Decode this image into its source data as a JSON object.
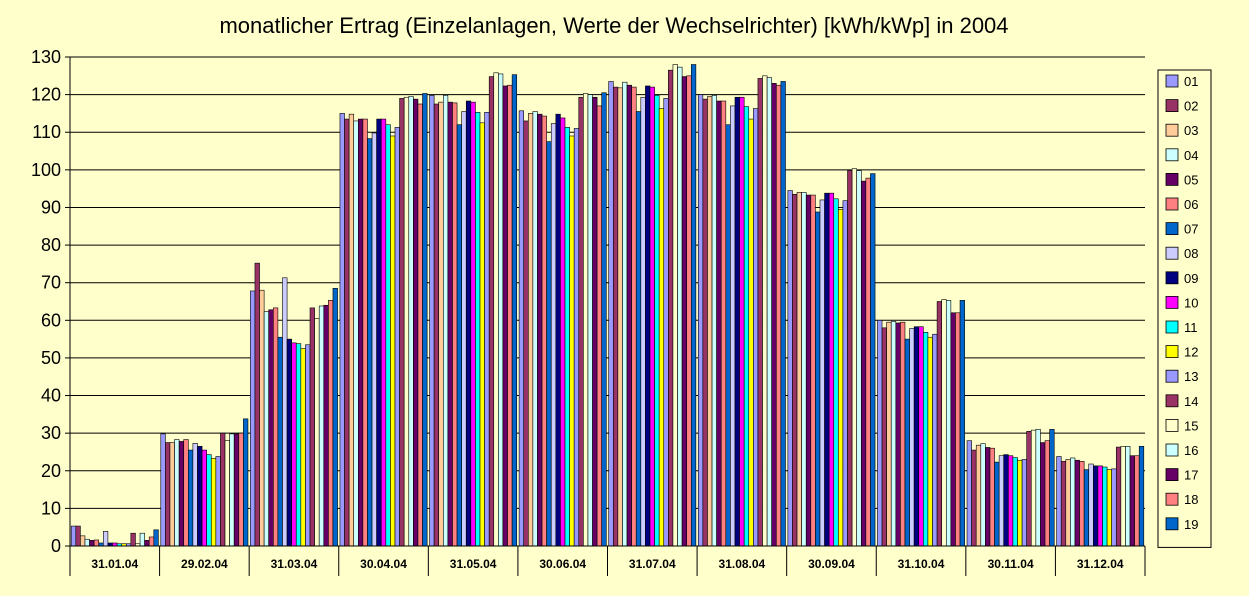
{
  "chart_data": {
    "type": "bar",
    "title": "monatlicher Ertrag (Einzelanlagen, Werte der Wechselrichter) [kWh/kWp] in 2004",
    "xlabel": "",
    "ylabel": "",
    "ylim": [
      0,
      130
    ],
    "yticks": [
      0,
      10,
      20,
      30,
      40,
      50,
      60,
      70,
      80,
      90,
      100,
      110,
      120,
      130
    ],
    "grid": true,
    "legend_position": "right",
    "categories": [
      "31.01.04",
      "29.02.04",
      "31.03.04",
      "30.04.04",
      "31.05.04",
      "30.06.04",
      "31.07.04",
      "31.08.04",
      "30.09.04",
      "31.10.04",
      "30.11.04",
      "31.12.04"
    ],
    "series": [
      {
        "name": "01",
        "color": "#9999ff",
        "values": [
          5.3,
          29.8,
          67.8,
          115.0,
          119.8,
          115.7,
          123.5,
          120.0,
          94.5,
          60.0,
          28.0,
          23.8
        ]
      },
      {
        "name": "02",
        "color": "#993366",
        "values": [
          5.3,
          27.5,
          75.2,
          113.5,
          117.5,
          113.0,
          122.0,
          118.8,
          93.5,
          58.0,
          25.5,
          22.5
        ]
      },
      {
        "name": "03",
        "color": "#ffcc99",
        "values": [
          2.7,
          27.5,
          68.0,
          114.8,
          118.0,
          115.0,
          121.8,
          119.5,
          94.0,
          59.5,
          26.8,
          23.0
        ]
      },
      {
        "name": "04",
        "color": "#ccffff",
        "values": [
          1.8,
          28.3,
          62.3,
          113.0,
          119.8,
          115.5,
          123.3,
          119.8,
          94.0,
          59.7,
          27.2,
          23.4
        ]
      },
      {
        "name": "05",
        "color": "#660066",
        "values": [
          1.5,
          27.8,
          62.8,
          113.5,
          118.0,
          114.8,
          122.5,
          118.3,
          93.3,
          59.3,
          26.2,
          22.8
        ]
      },
      {
        "name": "06",
        "color": "#ff8080",
        "values": [
          1.6,
          28.3,
          63.3,
          113.5,
          117.8,
          114.3,
          122.0,
          118.3,
          93.3,
          59.5,
          26.0,
          22.5
        ]
      },
      {
        "name": "07",
        "color": "#0066cc",
        "values": [
          0.8,
          25.5,
          55.5,
          108.3,
          112.0,
          107.5,
          115.5,
          112.0,
          88.8,
          55.0,
          22.3,
          20.3
        ]
      },
      {
        "name": "08",
        "color": "#ccccff",
        "values": [
          3.9,
          27.3,
          71.3,
          109.8,
          115.5,
          112.3,
          119.3,
          117.0,
          92.0,
          57.8,
          24.0,
          21.8
        ]
      },
      {
        "name": "09",
        "color": "#000080",
        "values": [
          0.8,
          26.5,
          55.0,
          113.5,
          118.3,
          114.8,
          122.3,
          119.3,
          93.8,
          58.3,
          24.3,
          21.3
        ]
      },
      {
        "name": "10",
        "color": "#ff00ff",
        "values": [
          0.8,
          25.5,
          54.0,
          113.5,
          118.0,
          113.8,
          122.0,
          119.3,
          93.8,
          58.3,
          24.0,
          21.3
        ]
      },
      {
        "name": "11",
        "color": "#00ffff",
        "values": [
          0.6,
          24.3,
          53.8,
          112.0,
          115.3,
          111.3,
          119.8,
          116.8,
          92.3,
          56.8,
          23.5,
          21.0
        ]
      },
      {
        "name": "12",
        "color": "#ffff00",
        "values": [
          0.6,
          23.3,
          52.5,
          109.0,
          112.5,
          109.0,
          116.3,
          113.5,
          89.5,
          55.5,
          22.8,
          20.3
        ]
      },
      {
        "name": "13",
        "color": "#9999ff",
        "values": [
          0.6,
          23.8,
          53.5,
          111.3,
          115.3,
          111.0,
          119.0,
          116.3,
          91.8,
          56.3,
          23.0,
          20.5
        ]
      },
      {
        "name": "14",
        "color": "#993366",
        "values": [
          3.4,
          30.0,
          63.3,
          119.0,
          124.8,
          119.3,
          126.5,
          124.3,
          99.8,
          65.0,
          30.5,
          26.3
        ]
      },
      {
        "name": "15",
        "color": "#ffffcc",
        "values": [
          0.6,
          28.0,
          60.5,
          119.3,
          125.8,
          120.3,
          128.0,
          125.0,
          100.3,
          65.5,
          30.8,
          26.5
        ]
      },
      {
        "name": "16",
        "color": "#ccffff",
        "values": [
          3.4,
          29.8,
          63.8,
          119.5,
          125.5,
          120.0,
          127.3,
          124.5,
          99.8,
          65.3,
          31.0,
          26.5
        ]
      },
      {
        "name": "17",
        "color": "#660066",
        "values": [
          1.5,
          29.8,
          64.0,
          118.8,
          122.3,
          119.3,
          124.8,
          123.0,
          97.0,
          62.0,
          27.5,
          24.0
        ]
      },
      {
        "name": "18",
        "color": "#ff8080",
        "values": [
          2.4,
          30.0,
          65.3,
          117.5,
          122.5,
          117.0,
          125.0,
          122.5,
          97.8,
          62.0,
          28.0,
          24.0
        ]
      },
      {
        "name": "19",
        "color": "#0066cc",
        "values": [
          4.3,
          33.8,
          68.5,
          120.3,
          125.3,
          120.5,
          128.0,
          123.5,
          99.0,
          65.3,
          31.0,
          26.5
        ]
      }
    ]
  }
}
